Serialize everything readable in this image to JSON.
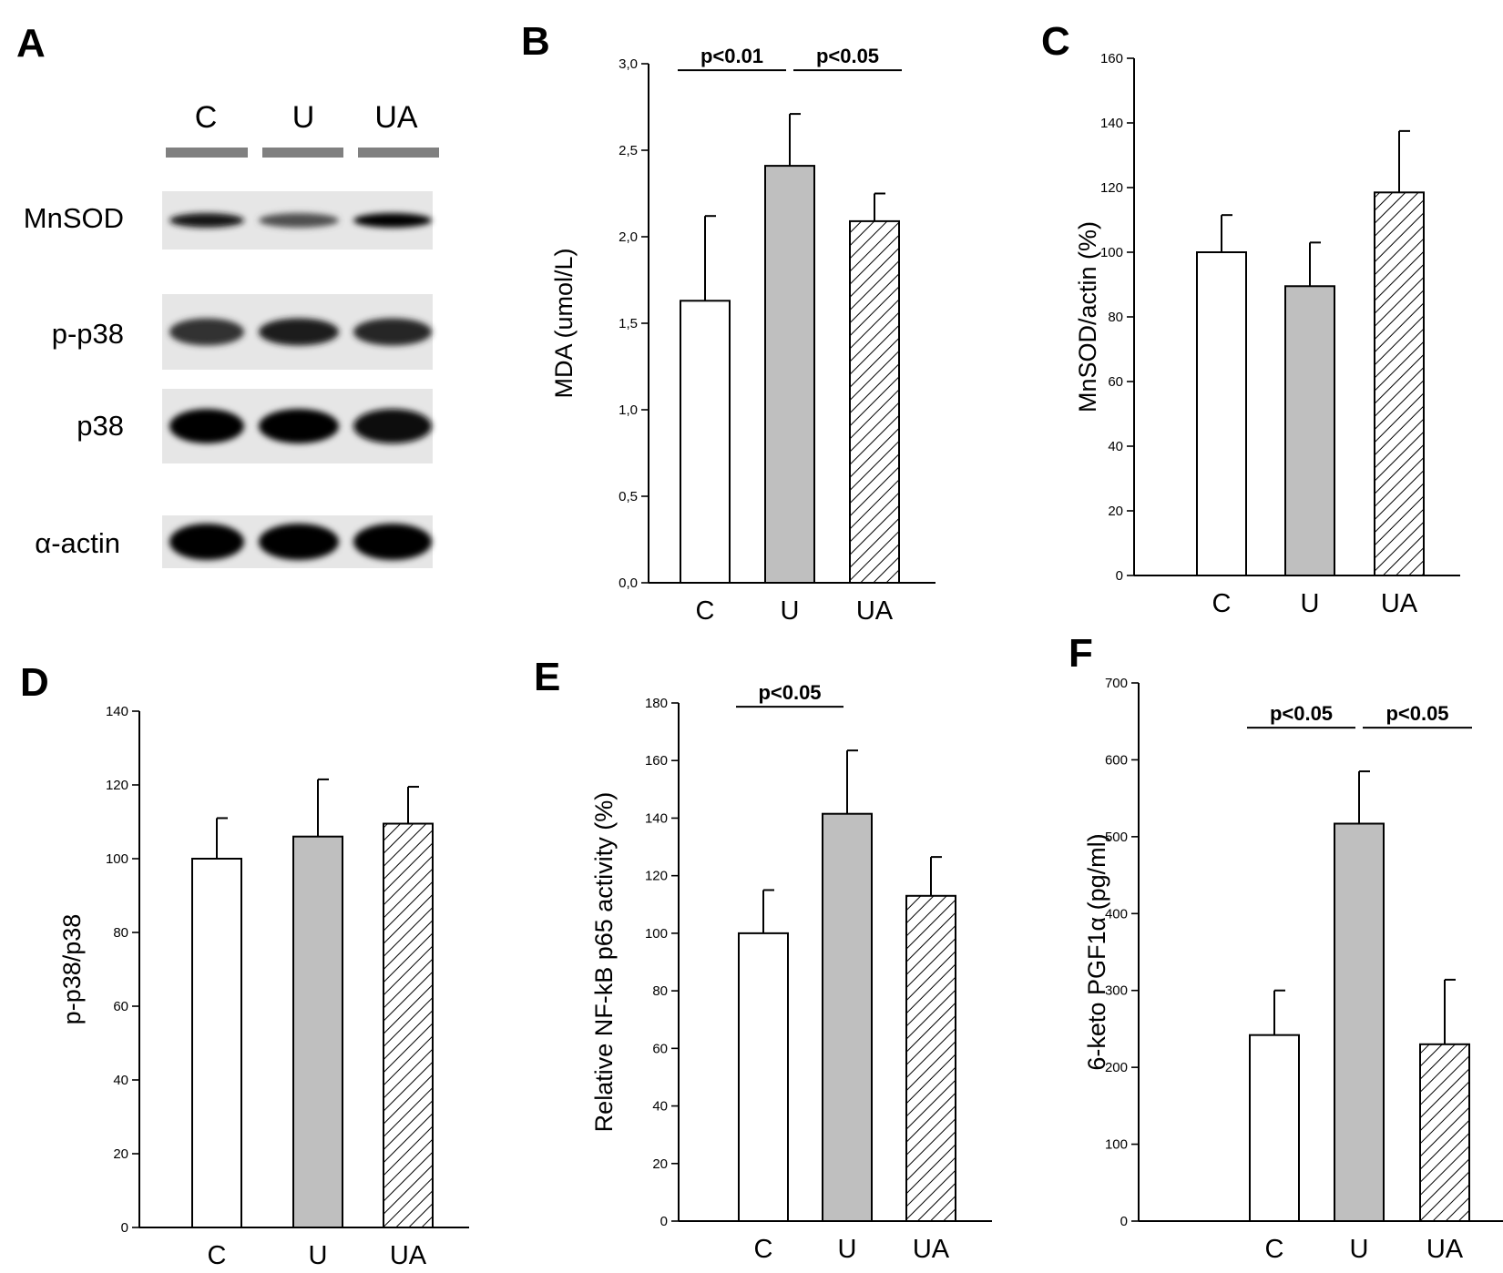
{
  "blot": {
    "letter": "A",
    "lanes": [
      "C",
      "U",
      "UA"
    ],
    "rows": [
      {
        "name": "MnSOD",
        "intensity": [
          0.9,
          0.6,
          1.0
        ]
      },
      {
        "name": "p-p38",
        "intensity": [
          0.75,
          0.85,
          0.8
        ]
      },
      {
        "name": "p38",
        "intensity": [
          1.0,
          1.0,
          0.95
        ]
      },
      {
        "name": "α-actin",
        "intensity": [
          1.0,
          1.0,
          1.0
        ]
      }
    ]
  },
  "colors": {
    "bar_C": "#ffffff",
    "bar_U": "#bfbfbf",
    "bar_UA": "hatch",
    "stroke": "#000000"
  },
  "chart_data": [
    {
      "letter": "B",
      "type": "bar",
      "categories": [
        "C",
        "U",
        "UA"
      ],
      "values": [
        1.63,
        2.41,
        2.09
      ],
      "errors": [
        0.49,
        0.3,
        0.16
      ],
      "ylabel": "MDA (umol/L)",
      "ylim": [
        0,
        3
      ],
      "ticks": [
        "0,0",
        "0,5",
        "1,0",
        "1,5",
        "2,0",
        "2,5",
        "3,0"
      ],
      "significance": [
        {
          "from": 0,
          "to": 1,
          "label": "p<0.01"
        },
        {
          "from": 1,
          "to": 2,
          "label": "p<0.05"
        }
      ]
    },
    {
      "letter": "C",
      "type": "bar",
      "categories": [
        "C",
        "U",
        "UA"
      ],
      "values": [
        100,
        89.5,
        118.5
      ],
      "errors": [
        11.5,
        13.5,
        19
      ],
      "ylabel": "MnSOD/actin (%)",
      "ylim": [
        0,
        160
      ],
      "ticks": [
        "0",
        "20",
        "40",
        "60",
        "80",
        "100",
        "120",
        "140",
        "160"
      ],
      "significance": []
    },
    {
      "letter": "D",
      "type": "bar",
      "categories": [
        "C",
        "U",
        "UA"
      ],
      "values": [
        100,
        106,
        109.5
      ],
      "errors": [
        11,
        15.5,
        10
      ],
      "ylabel": "p-p38/p38",
      "ylim": [
        0,
        140
      ],
      "ticks": [
        "0",
        "20",
        "40",
        "60",
        "80",
        "100",
        "120",
        "140"
      ],
      "significance": []
    },
    {
      "letter": "E",
      "type": "bar",
      "categories": [
        "C",
        "U",
        "UA"
      ],
      "values": [
        100,
        141.5,
        113
      ],
      "errors": [
        15,
        22,
        13.5
      ],
      "ylabel": "Relative NF-kB p65 activity (%)",
      "ylim": [
        0,
        180
      ],
      "ticks": [
        "0",
        "20",
        "40",
        "60",
        "80",
        "100",
        "120",
        "140",
        "160",
        "180"
      ],
      "significance": [
        {
          "from": 0,
          "to": 1,
          "label": "p<0.05"
        }
      ]
    },
    {
      "letter": "F",
      "type": "bar",
      "categories": [
        "C",
        "U",
        "UA"
      ],
      "values": [
        242,
        517,
        230
      ],
      "errors": [
        58,
        68,
        84
      ],
      "ylabel": "6-keto PGF1α (pg/ml)",
      "ylim": [
        0,
        700
      ],
      "ticks": [
        "0",
        "100",
        "200",
        "300",
        "400",
        "500",
        "600",
        "700"
      ],
      "significance": [
        {
          "from": 0,
          "to": 1,
          "label": "p<0.05"
        },
        {
          "from": 1,
          "to": 2,
          "label": "p<0.05"
        }
      ]
    }
  ]
}
